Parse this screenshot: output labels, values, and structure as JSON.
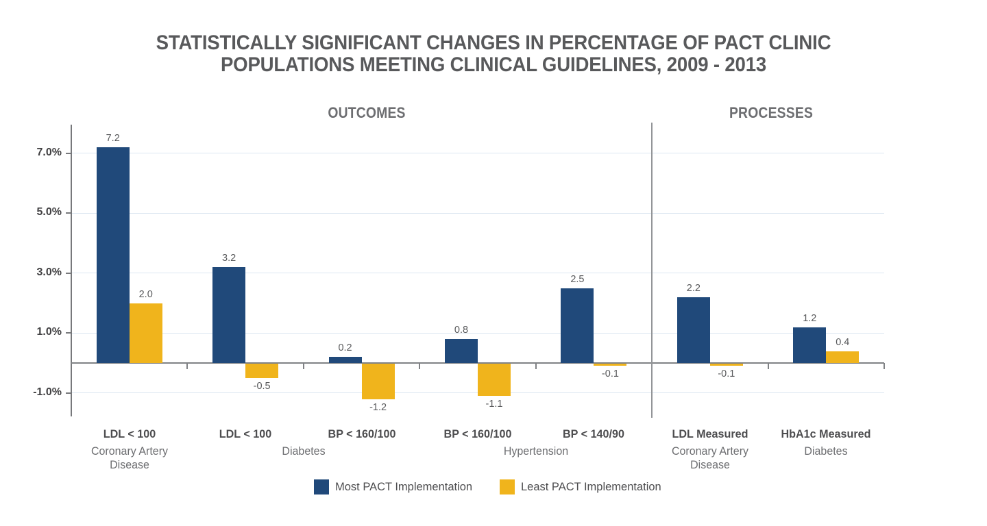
{
  "title": {
    "line1": "STATISTICALLY SIGNIFICANT CHANGES IN PERCENTAGE OF PACT CLINIC",
    "line2": "POPULATIONS MEETING CLINICAL GUIDELINES, 2009 - 2013"
  },
  "section_headers": {
    "outcomes": "OUTCOMES",
    "processes": "PROCESSES"
  },
  "chart_data": {
    "type": "bar",
    "title": "STATISTICALLY SIGNIFICANT CHANGES IN PERCENTAGE OF PACT CLINIC POPULATIONS MEETING CLINICAL GUIDELINES, 2009 - 2013",
    "sections": [
      {
        "label": "OUTCOMES",
        "category_span": [
          0,
          4
        ]
      },
      {
        "label": "PROCESSES",
        "category_span": [
          5,
          6
        ]
      }
    ],
    "categories": [
      "LDL < 100",
      "LDL < 100",
      "BP < 160/100",
      "BP < 160/100",
      "BP < 140/90",
      "LDL Measured",
      "HbA1c Measured"
    ],
    "condition_groups": [
      {
        "label": "Coronary Artery Disease",
        "lines": [
          "Coronary Artery",
          "Disease"
        ],
        "span": [
          0,
          0
        ]
      },
      {
        "label": "Diabetes",
        "lines": [
          "Diabetes"
        ],
        "span": [
          1,
          2
        ]
      },
      {
        "label": "Hypertension",
        "lines": [
          "Hypertension"
        ],
        "span": [
          3,
          4
        ]
      },
      {
        "label": "Coronary Artery Disease",
        "lines": [
          "Coronary Artery",
          "Disease"
        ],
        "span": [
          5,
          5
        ]
      },
      {
        "label": "Diabetes",
        "lines": [
          "Diabetes"
        ],
        "span": [
          6,
          6
        ]
      }
    ],
    "series": [
      {
        "name": "Most PACT Implementation",
        "color": "#20497A",
        "values": [
          7.2,
          3.2,
          0.2,
          0.8,
          2.5,
          2.2,
          1.2
        ]
      },
      {
        "name": "Least PACT Implementation",
        "color": "#F0B41C",
        "values": [
          2.0,
          -0.5,
          -1.2,
          -1.1,
          -0.1,
          -0.1,
          0.4
        ]
      }
    ],
    "y_axis": {
      "tick_labels": [
        "7.0%",
        "5.0%",
        "3.0%",
        "1.0%",
        "-1.0%"
      ],
      "tick_values": [
        7,
        5,
        3,
        1,
        -1
      ],
      "unit": "%"
    },
    "ylim": [
      -1.8,
      8.0
    ],
    "grid": true,
    "legend_position": "bottom"
  },
  "legend": {
    "items": [
      {
        "label": "Most PACT Implementation",
        "color": "#20497A"
      },
      {
        "label": "Least PACT Implementation",
        "color": "#F0B41C"
      }
    ]
  },
  "colors": {
    "most_pact_blue": "#20497A",
    "least_pact_gold": "#F0B41C",
    "gridline": "#DCE7F1",
    "axis_gray": "#808285",
    "title_text": "#58595B",
    "label_text": "#4D4D4F",
    "sub_text": "#6D6E71"
  }
}
